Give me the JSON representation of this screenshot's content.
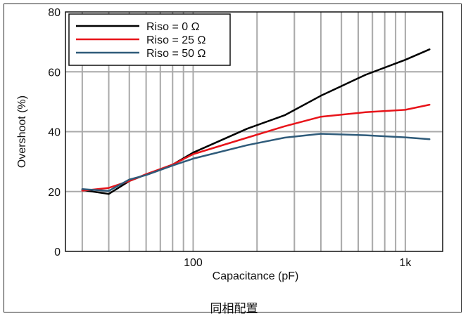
{
  "caption": "同相配置",
  "chart_data": {
    "type": "line",
    "title": "",
    "xlabel": "Capacitance (pF)",
    "ylabel": "Overshoot (%)",
    "xscale": "log",
    "xlim": [
      25,
      1500
    ],
    "ylim": [
      0,
      80
    ],
    "x_ticks": [
      100,
      1000
    ],
    "x_tick_labels": [
      "100",
      "1k"
    ],
    "y_ticks": [
      0,
      20,
      40,
      60,
      80
    ],
    "y_tick_labels": [
      "0",
      "20",
      "40",
      "60",
      "80"
    ],
    "grid": true,
    "legend_position": "top-left",
    "series": [
      {
        "name": "Riso = 0 Ω",
        "color": "#000000",
        "x": [
          30,
          40,
          50,
          60,
          80,
          100,
          180,
          270,
          400,
          650,
          1000,
          1300
        ],
        "y": [
          20.5,
          19.2,
          23.5,
          25.7,
          29,
          33,
          41,
          45.5,
          52,
          59,
          64,
          67.5
        ]
      },
      {
        "name": "Riso = 25 Ω",
        "color": "#e8141a",
        "x": [
          30,
          40,
          50,
          60,
          80,
          100,
          180,
          270,
          400,
          650,
          1000,
          1300
        ],
        "y": [
          20.3,
          21.2,
          23.5,
          25.8,
          29,
          32.5,
          38,
          41.8,
          45,
          46.5,
          47.3,
          49
        ]
      },
      {
        "name": "Riso = 50 Ω",
        "color": "#2f5b7a",
        "x": [
          30,
          40,
          50,
          60,
          80,
          100,
          180,
          270,
          400,
          650,
          1000,
          1300
        ],
        "y": [
          20.8,
          20.2,
          24,
          25.5,
          28.7,
          31,
          35.5,
          38,
          39.3,
          38.8,
          38.1,
          37.5
        ]
      }
    ]
  }
}
